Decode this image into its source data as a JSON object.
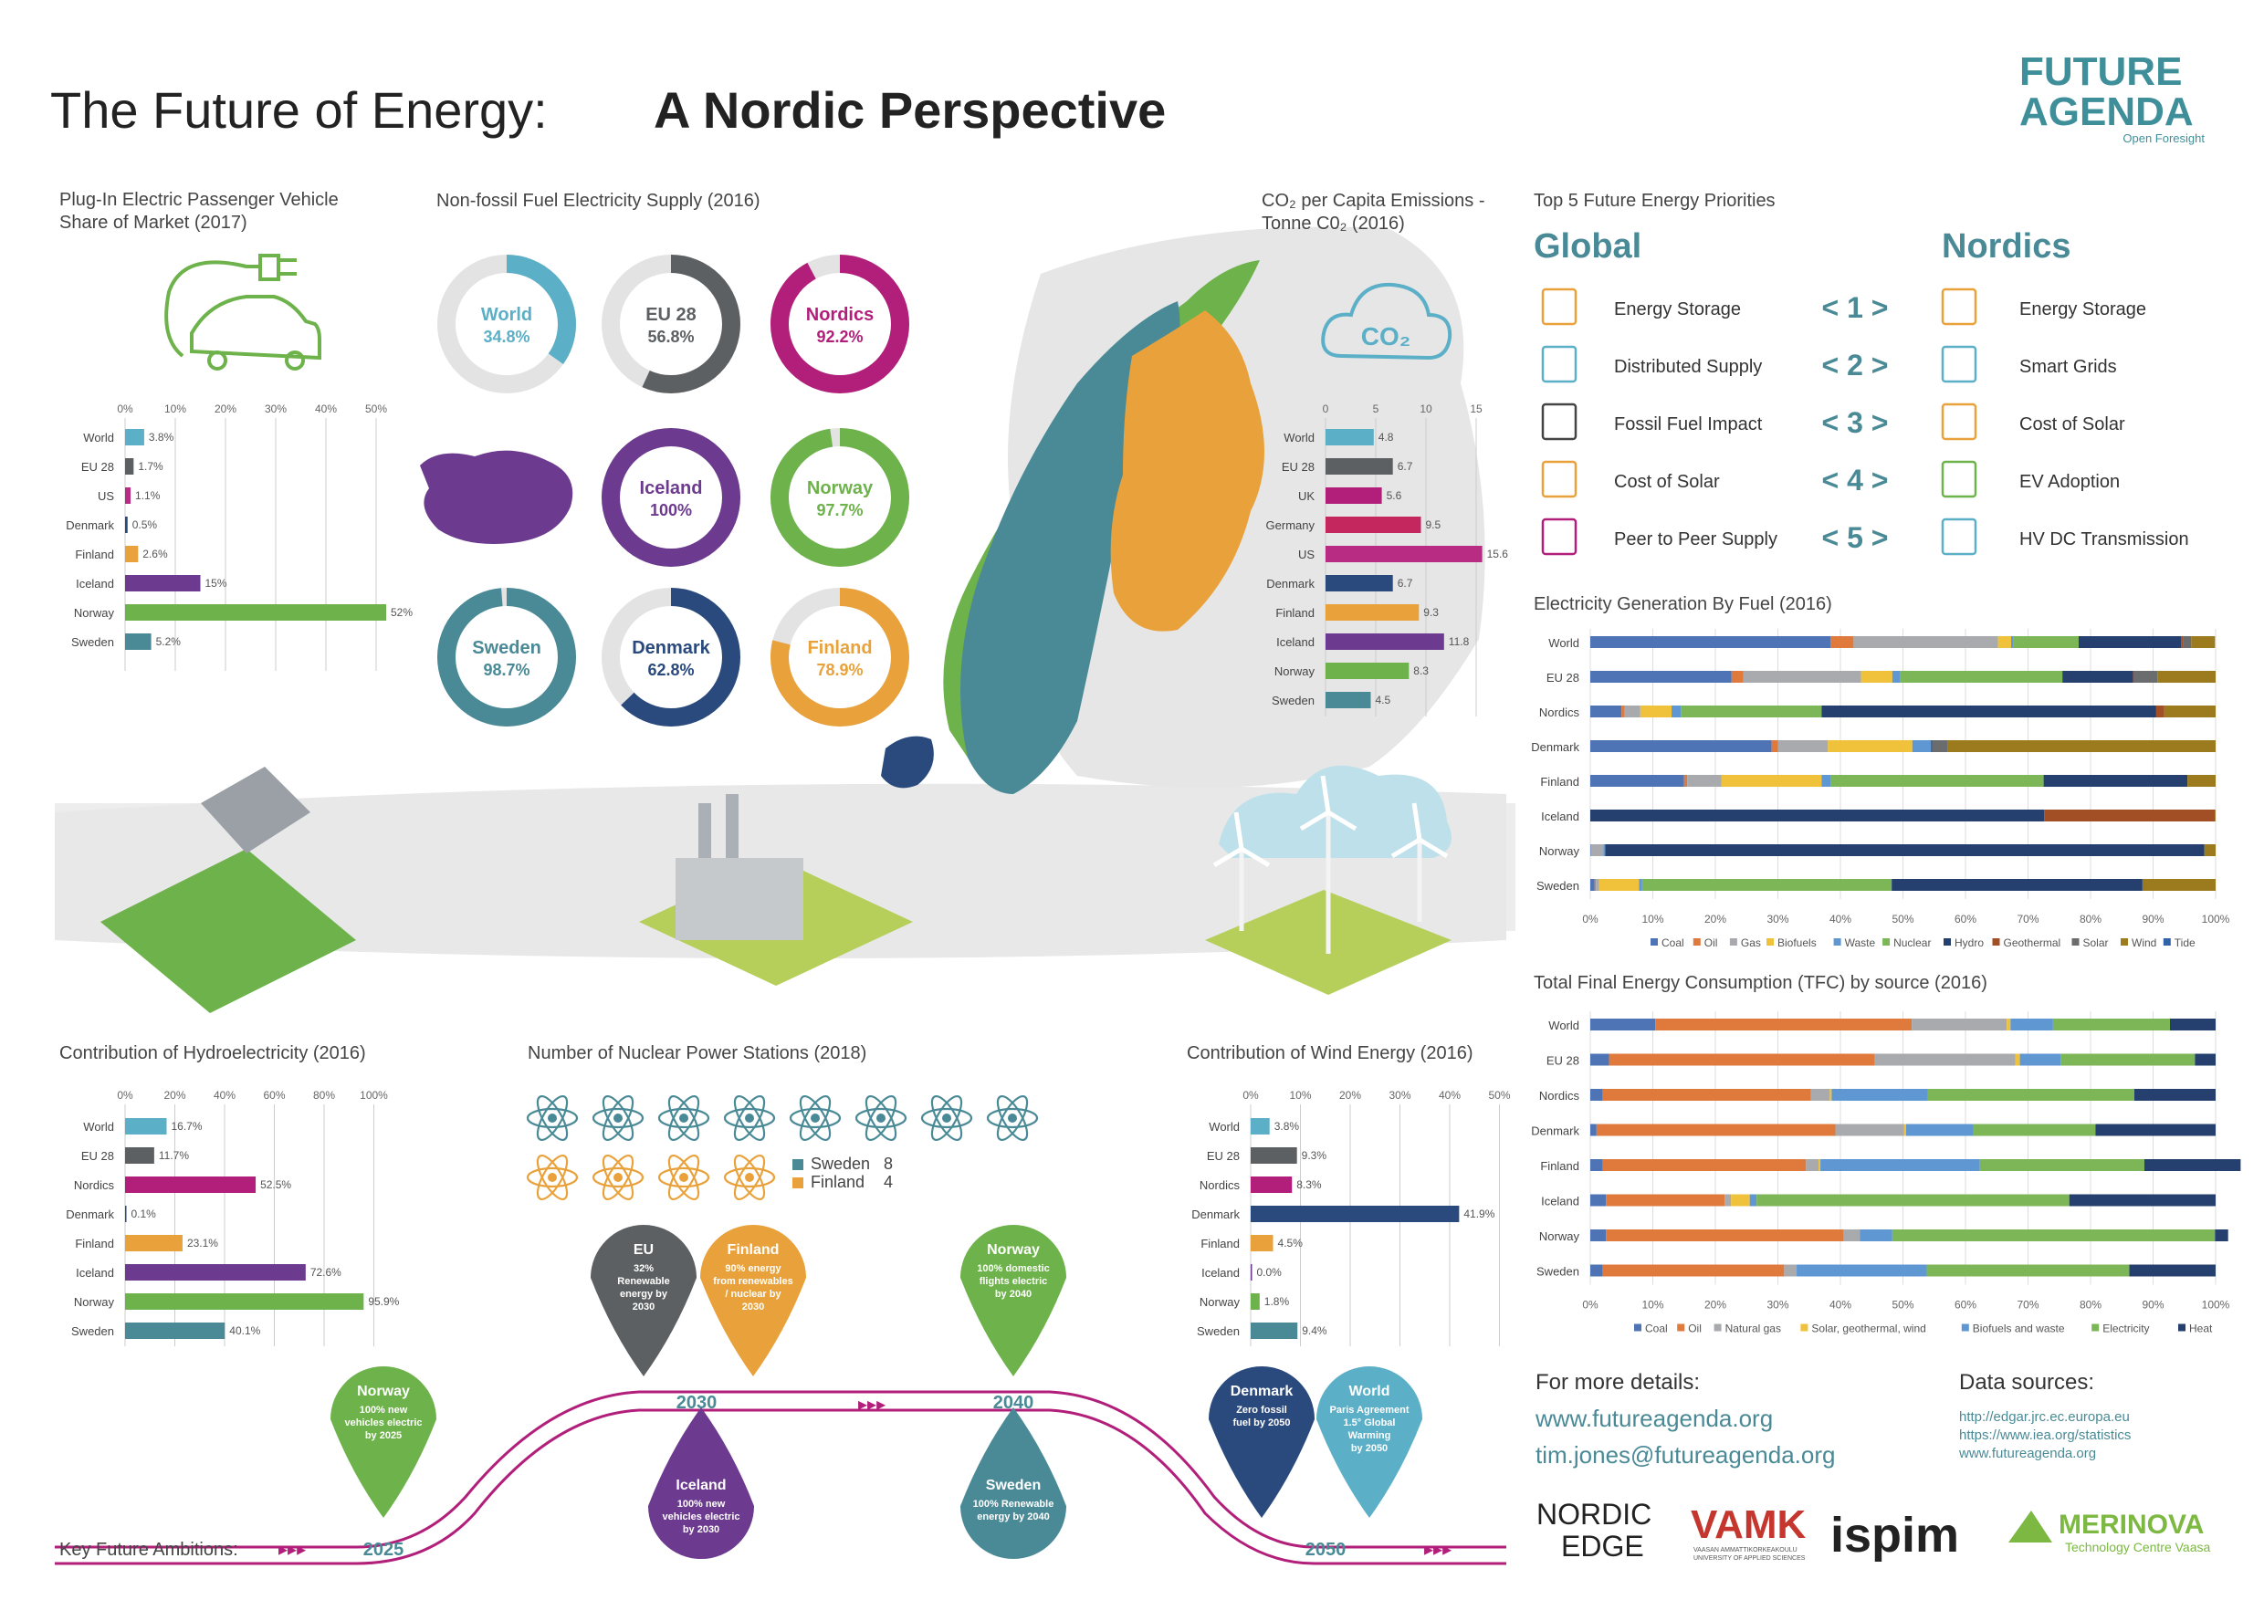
{
  "title": {
    "part1": "The Future of Energy:",
    "part2": "A Nordic Perspective"
  },
  "logo": {
    "line1": "FUTURE",
    "line2": "AGENDA",
    "tag": "Open Foresight"
  },
  "colors": {
    "World": "#5bafc7",
    "EU 28": "#5d6062",
    "US": "#b92c83",
    "Denmark": "#2a4a7e",
    "Finland": "#e9a23b",
    "Iceland": "#6c3a8e",
    "Norway": "#6db24a",
    "Sweden": "#4a8a96",
    "Nordics": "#b21f7b",
    "UK": "#b21f7b",
    "Germany": "#c4275d",
    "accent": "#4a8a96"
  },
  "ev": {
    "title1": "Plug-In Electric Passenger Vehicle",
    "title2": "Share of Market (2017)",
    "ticks": [
      "0%",
      "10%",
      "20%",
      "30%",
      "40%",
      "50%"
    ],
    "rows": [
      {
        "label": "World",
        "value": 3.8,
        "text": "3.8%"
      },
      {
        "label": "EU 28",
        "value": 1.7,
        "text": "1.7%"
      },
      {
        "label": "US",
        "value": 1.1,
        "text": "1.1%"
      },
      {
        "label": "Denmark",
        "value": 0.5,
        "text": "0.5%"
      },
      {
        "label": "Finland",
        "value": 2.6,
        "text": "2.6%"
      },
      {
        "label": "Iceland",
        "value": 15,
        "text": "15%"
      },
      {
        "label": "Norway",
        "value": 52,
        "text": "52%"
      },
      {
        "label": "Sweden",
        "value": 5.2,
        "text": "5.2%"
      }
    ]
  },
  "nonfossil": {
    "title": "Non-fossil Fuel Electricity Supply (2016)",
    "items": [
      {
        "label": "World",
        "pct": 34.8,
        "text": "34.8%",
        "color": "#5bafc7"
      },
      {
        "label": "EU 28",
        "pct": 56.8,
        "text": "56.8%",
        "color": "#5d6062"
      },
      {
        "label": "Nordics",
        "pct": 92.2,
        "text": "92.2%",
        "color": "#b21f7b"
      },
      {
        "label": "Iceland",
        "pct": 100,
        "text": "100%",
        "color": "#6c3a8e"
      },
      {
        "label": "Norway",
        "pct": 97.7,
        "text": "97.7%",
        "color": "#6db24a"
      },
      {
        "label": "Sweden",
        "pct": 98.7,
        "text": "98.7%",
        "color": "#4a8a96"
      },
      {
        "label": "Denmark",
        "pct": 62.8,
        "text": "62.8%",
        "color": "#2a4a7e"
      },
      {
        "label": "Finland",
        "pct": 78.9,
        "text": "78.9%",
        "color": "#e9a23b"
      }
    ]
  },
  "co2": {
    "title1": "CO₂ per Capita Emissions -",
    "title2": "Tonne C0₂ (2016)",
    "cloud": "CO₂",
    "ticks": [
      "0",
      "5",
      "10",
      "15"
    ],
    "rows": [
      {
        "label": "World",
        "value": 4.8,
        "text": "4.8"
      },
      {
        "label": "EU 28",
        "value": 6.7,
        "text": "6.7"
      },
      {
        "label": "UK",
        "value": 5.6,
        "text": "5.6"
      },
      {
        "label": "Germany",
        "value": 9.5,
        "text": "9.5"
      },
      {
        "label": "US",
        "value": 15.6,
        "text": "15.6"
      },
      {
        "label": "Denmark",
        "value": 6.7,
        "text": "6.7"
      },
      {
        "label": "Finland",
        "value": 9.3,
        "text": "9.3"
      },
      {
        "label": "Iceland",
        "value": 11.8,
        "text": "11.8"
      },
      {
        "label": "Norway",
        "value": 8.3,
        "text": "8.3"
      },
      {
        "label": "Sweden",
        "value": 4.5,
        "text": "4.5"
      }
    ]
  },
  "priorities": {
    "title": "Top 5 Future Energy Priorities",
    "global": "Global",
    "nordics": "Nordics",
    "rows": [
      {
        "rank": "< 1 >",
        "g": "Energy Storage",
        "n": "Energy Storage"
      },
      {
        "rank": "< 2 >",
        "g": "Distributed Supply",
        "n": "Smart Grids"
      },
      {
        "rank": "< 3 >",
        "g": "Fossil Fuel Impact",
        "n": "Cost of Solar"
      },
      {
        "rank": "< 4 >",
        "g": "Cost of Solar",
        "n": "EV Adoption"
      },
      {
        "rank": "< 5 >",
        "g": "Peer to Peer Supply",
        "n": "HV DC Transmission"
      }
    ]
  },
  "gen": {
    "title": "Electricity Generation By Fuel (2016)",
    "ticks": [
      "0%",
      "10%",
      "20%",
      "30%",
      "40%",
      "50%",
      "60%",
      "70%",
      "80%",
      "90%",
      "100%"
    ],
    "legend": [
      {
        "name": "Coal",
        "color": "#4f74b5"
      },
      {
        "name": "Oil",
        "color": "#e07a3c"
      },
      {
        "name": "Gas",
        "color": "#a8aaad"
      },
      {
        "name": "Biofuels",
        "color": "#f0c23b"
      },
      {
        "name": "Waste",
        "color": "#5f97d3"
      },
      {
        "name": "Nuclear",
        "color": "#7cb657"
      },
      {
        "name": "Hydro",
        "color": "#25406e"
      },
      {
        "name": "Geothermal",
        "color": "#a34f26"
      },
      {
        "name": "Solar",
        "color": "#6a6c6e"
      },
      {
        "name": "Wind",
        "color": "#9c7a1e"
      },
      {
        "name": "Tide",
        "color": "#2f62a6"
      }
    ],
    "rows": [
      {
        "label": "World",
        "v": [
          38.4,
          3.7,
          23.1,
          2.1,
          0.4,
          10.4,
          16.4,
          0.3,
          1.3,
          3.8,
          0
        ]
      },
      {
        "label": "EU 28",
        "v": [
          22.6,
          1.9,
          18.8,
          5,
          1.2,
          26,
          11.3,
          0.2,
          3.7,
          9.3,
          0
        ]
      },
      {
        "label": "Nordics",
        "v": [
          5,
          0.5,
          2.5,
          5,
          1.5,
          22.5,
          53.5,
          1.3,
          0,
          8.2,
          0
        ]
      },
      {
        "label": "Denmark",
        "v": [
          29,
          1,
          8,
          13.5,
          3,
          0,
          0.2,
          0,
          2.5,
          42.8,
          0
        ]
      },
      {
        "label": "Finland",
        "v": [
          15,
          0.5,
          5.5,
          16,
          1.5,
          34,
          23,
          0,
          0,
          4.5,
          0
        ]
      },
      {
        "label": "Iceland",
        "v": [
          0,
          0,
          0,
          0,
          0,
          0,
          72.6,
          27.3,
          0,
          0.1,
          0
        ]
      },
      {
        "label": "Norway",
        "v": [
          0.1,
          0,
          2,
          0,
          0.3,
          0,
          95.8,
          0,
          0,
          1.8,
          0
        ]
      },
      {
        "label": "Sweden",
        "v": [
          0.7,
          0.2,
          0.5,
          6.4,
          0.5,
          39.9,
          40.1,
          0,
          0.1,
          11.6,
          0
        ]
      }
    ]
  },
  "tfc": {
    "title": "Total Final Energy Consumption (TFC) by source (2016)",
    "ticks": [
      "0%",
      "10%",
      "20%",
      "30%",
      "40%",
      "50%",
      "60%",
      "70%",
      "80%",
      "90%",
      "100%"
    ],
    "legend": [
      {
        "name": "Coal",
        "color": "#4f74b5"
      },
      {
        "name": "Oil",
        "color": "#e07a3c"
      },
      {
        "name": "Natural gas",
        "color": "#a8aaad"
      },
      {
        "name": "Solar, geothermal, wind",
        "color": "#f0c23b"
      },
      {
        "name": "Biofuels and waste",
        "color": "#5f97d3"
      },
      {
        "name": "Electricity",
        "color": "#7cb657"
      },
      {
        "name": "Heat",
        "color": "#25406e"
      }
    ],
    "rows": [
      {
        "label": "World",
        "v": [
          10.4,
          41,
          15.2,
          0.6,
          6.8,
          18.7,
          7.3
        ]
      },
      {
        "label": "EU 28",
        "v": [
          3,
          42.5,
          22.5,
          0.7,
          6.5,
          21.5,
          3.3
        ]
      },
      {
        "label": "Nordics",
        "v": [
          2,
          33.3,
          3,
          0.3,
          15.4,
          33,
          13
        ]
      },
      {
        "label": "Denmark",
        "v": [
          1,
          38.2,
          11,
          0.3,
          10.8,
          19.5,
          19.2
        ]
      },
      {
        "label": "Finland",
        "v": [
          2,
          32.5,
          2,
          0.3,
          25.5,
          26.3,
          15.4
        ]
      },
      {
        "label": "Iceland",
        "v": [
          2.5,
          19,
          1,
          3,
          1.1,
          50,
          23.4
        ]
      },
      {
        "label": "Norway",
        "v": [
          2.5,
          38,
          2.6,
          0,
          5.2,
          51.6,
          2.1
        ]
      },
      {
        "label": "Sweden",
        "v": [
          2,
          29,
          2,
          0,
          20.8,
          32.4,
          13.8
        ]
      }
    ]
  },
  "hydro": {
    "title": "Contribution of Hydroelectricity (2016)",
    "ticks": [
      "0%",
      "20%",
      "40%",
      "60%",
      "80%",
      "100%"
    ],
    "rows": [
      {
        "label": "World",
        "value": 16.7,
        "text": "16.7%"
      },
      {
        "label": "EU 28",
        "value": 11.7,
        "text": "11.7%"
      },
      {
        "label": "Nordics",
        "value": 52.5,
        "text": "52.5%"
      },
      {
        "label": "Denmark",
        "value": 0.1,
        "text": "0.1%"
      },
      {
        "label": "Finland",
        "value": 23.1,
        "text": "23.1%"
      },
      {
        "label": "Iceland",
        "value": 72.6,
        "text": "72.6%"
      },
      {
        "label": "Norway",
        "value": 95.9,
        "text": "95.9%"
      },
      {
        "label": "Sweden",
        "value": 40.1,
        "text": "40.1%"
      }
    ]
  },
  "nuclear": {
    "title": "Number of Nuclear Power Stations (2018)",
    "legend": [
      {
        "label": "Sweden",
        "count": "8",
        "n": 8,
        "color": "#4a8a96"
      },
      {
        "label": "Finland",
        "count": "4",
        "n": 4,
        "color": "#e9a23b"
      }
    ]
  },
  "wind": {
    "title": "Contribution of Wind Energy (2016)",
    "ticks": [
      "0%",
      "10%",
      "20%",
      "30%",
      "40%",
      "50%"
    ],
    "rows": [
      {
        "label": "World",
        "value": 3.8,
        "text": "3.8%"
      },
      {
        "label": "EU 28",
        "value": 9.3,
        "text": "9.3%"
      },
      {
        "label": "Nordics",
        "value": 8.3,
        "text": "8.3%"
      },
      {
        "label": "Denmark",
        "value": 41.9,
        "text": "41.9%"
      },
      {
        "label": "Finland",
        "value": 4.5,
        "text": "4.5%"
      },
      {
        "label": "Iceland",
        "value": 0,
        "text": "0.0%"
      },
      {
        "label": "Norway",
        "value": 1.8,
        "text": "1.8%"
      },
      {
        "label": "Sweden",
        "value": 9.4,
        "text": "9.4%"
      }
    ]
  },
  "timeline": {
    "label": "Key Future Ambitions:",
    "arrows": "▸▸▸",
    "years": [
      "2025",
      "2030",
      "2040",
      "2050"
    ],
    "pins": [
      {
        "title": "Norway",
        "lines": [
          "100% new",
          "vehicles electric",
          "by 2025"
        ],
        "color": "#6db24a"
      },
      {
        "title": "EU",
        "lines": [
          "32%",
          "Renewable",
          "energy by",
          "2030"
        ],
        "color": "#5d6062"
      },
      {
        "title": "Finland",
        "lines": [
          "90% energy",
          "from renewables",
          "/ nuclear by",
          "2030"
        ],
        "color": "#e9a23b"
      },
      {
        "title": "Iceland",
        "lines": [
          "100% new",
          "vehicles electric",
          "by 2030"
        ],
        "color": "#6c3a8e"
      },
      {
        "title": "Norway",
        "lines": [
          "100% domestic",
          "flights electric",
          "by 2040"
        ],
        "color": "#6db24a"
      },
      {
        "title": "Sweden",
        "lines": [
          "100% Renewable",
          "energy by 2040"
        ],
        "color": "#4a8a96"
      },
      {
        "title": "Denmark",
        "lines": [
          "Zero fossil",
          "fuel by 2050"
        ],
        "color": "#2a4a7e"
      },
      {
        "title": "World",
        "lines": [
          "Paris Agreement",
          "1.5° Global",
          "Warming",
          "by 2050"
        ],
        "color": "#5bafc7"
      }
    ]
  },
  "details": {
    "heading": "For more details:",
    "web": "www.futureagenda.org",
    "email": "tim.jones@futureagenda.org"
  },
  "sources": {
    "heading": "Data sources:",
    "items": [
      "http://edgar.jrc.ec.europa.eu",
      "https://www.iea.org/statistics",
      "www.futureagenda.org"
    ]
  },
  "sponsors": {
    "nordic1": "NORDIC",
    "nordic2": "EDGE",
    "vamk": "VAMK",
    "vamk_sub1": "VAASAN AMMATTIKORKEAKOULU",
    "vamk_sub2": "UNIVERSITY OF APPLIED SCIENCES",
    "ispim": "ispim",
    "merinova": "MERINOVA",
    "merinova_sub": "Technology Centre Vaasa"
  }
}
